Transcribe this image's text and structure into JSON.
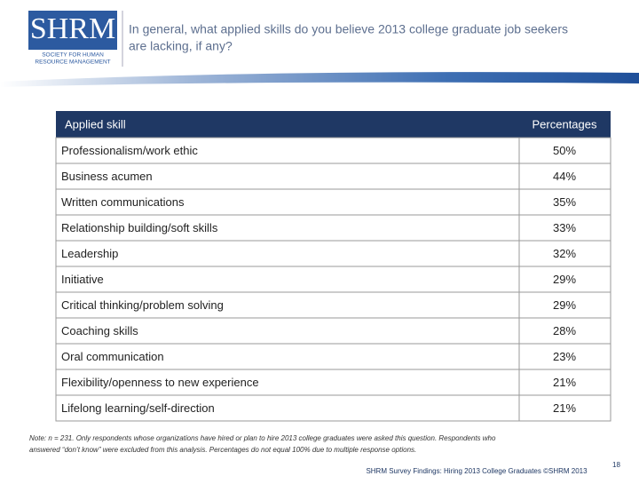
{
  "logo": {
    "name": "SHRM",
    "tagline": [
      "SOCIETY FOR HUMAN",
      "RESOURCE MANAGEMENT"
    ]
  },
  "header": {
    "title": [
      "In general, what applied skills do you believe 2013 college graduate job seekers",
      "are lacking, if any?"
    ]
  },
  "table": {
    "columns": [
      "Applied skill",
      "Percentages"
    ],
    "rows": [
      [
        "Professionalism/work ethic",
        "50%"
      ],
      [
        "Business acumen",
        "44%"
      ],
      [
        "Written communications",
        "35%"
      ],
      [
        "Relationship building/soft skills",
        "33%"
      ],
      [
        "Leadership",
        "32%"
      ],
      [
        "Initiative",
        "29%"
      ],
      [
        "Critical thinking/problem solving",
        "29%"
      ],
      [
        "Coaching skills",
        "28%"
      ],
      [
        "Oral communication",
        "23%"
      ],
      [
        "Flexibility/openness to new experience",
        "21%"
      ],
      [
        "Lifelong learning/self-direction",
        "21%"
      ]
    ]
  },
  "note": [
    "Note: n = 231. Only respondents whose organizations have hired or plan to hire 2013 college graduates were asked this question. Respondents who",
    "answered “don’t know” were excluded from this analysis. Percentages do not equal 100% due to multiple response options."
  ],
  "footer": {
    "source": "SHRM Survey Findings: Hiring 2013 College Graduates ©SHRM 2013",
    "page": "18"
  }
}
